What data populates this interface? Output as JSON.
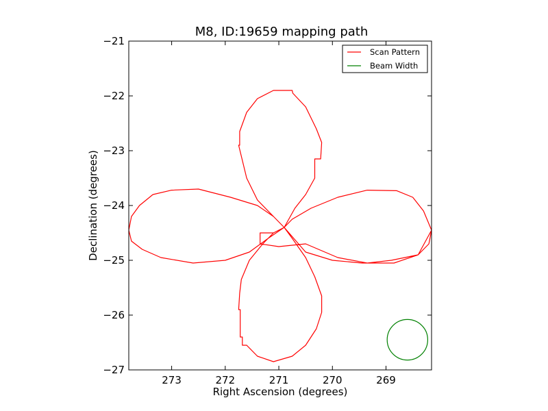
{
  "chart_data": {
    "type": "line",
    "title": "M8, ID:19659 mapping path",
    "xlabel": "Right Ascension (degrees)",
    "ylabel": "Declination (degrees)",
    "xlim": [
      273.8,
      268.15
    ],
    "ylim": [
      -27,
      -21
    ],
    "x_ticks": [
      273,
      272,
      271,
      270,
      269
    ],
    "x_tick_labels": [
      "273",
      "272",
      "271",
      "270",
      "269"
    ],
    "y_ticks": [
      -21,
      -22,
      -23,
      -24,
      -25,
      -26,
      -27
    ],
    "y_tick_labels": [
      "−21",
      "−22",
      "−23",
      "−24",
      "−25",
      "−26",
      "−27"
    ],
    "legend": {
      "placement": "top-right",
      "entries": [
        "Scan Pattern",
        "Beam Width"
      ]
    },
    "colors": {
      "scan": "#ff0000",
      "beam": "#008000"
    },
    "series": [
      {
        "name": "Scan Pattern",
        "points": [
          [
            270.9,
            -24.4
          ],
          [
            271.1,
            -24.2
          ],
          [
            271.4,
            -23.9
          ],
          [
            271.6,
            -23.5
          ],
          [
            271.7,
            -23.1
          ],
          [
            271.75,
            -22.9
          ],
          [
            271.73,
            -22.9
          ],
          [
            271.73,
            -22.65
          ],
          [
            271.6,
            -22.3
          ],
          [
            271.4,
            -22.05
          ],
          [
            271.1,
            -21.9
          ],
          [
            270.75,
            -21.9
          ],
          [
            270.74,
            -21.95
          ],
          [
            270.5,
            -22.2
          ],
          [
            270.3,
            -22.6
          ],
          [
            270.2,
            -22.85
          ],
          [
            270.22,
            -23.15
          ],
          [
            270.33,
            -23.15
          ],
          [
            270.33,
            -23.5
          ],
          [
            270.5,
            -23.8
          ],
          [
            270.7,
            -24.05
          ],
          [
            270.9,
            -24.4
          ],
          [
            270.75,
            -24.25
          ],
          [
            270.4,
            -24.05
          ],
          [
            269.9,
            -23.85
          ],
          [
            269.35,
            -23.72
          ],
          [
            268.8,
            -23.73
          ],
          [
            268.5,
            -23.85
          ],
          [
            268.3,
            -24.1
          ],
          [
            268.15,
            -24.45
          ],
          [
            268.2,
            -24.7
          ],
          [
            268.4,
            -24.9
          ],
          [
            268.85,
            -25.05
          ],
          [
            269.45,
            -25.05
          ],
          [
            270.0,
            -25.0
          ],
          [
            270.5,
            -24.85
          ],
          [
            270.9,
            -24.4
          ],
          [
            270.75,
            -24.6
          ],
          [
            270.5,
            -24.95
          ],
          [
            270.33,
            -25.3
          ],
          [
            270.2,
            -25.65
          ],
          [
            270.2,
            -25.95
          ],
          [
            270.3,
            -26.25
          ],
          [
            270.5,
            -26.55
          ],
          [
            270.75,
            -26.75
          ],
          [
            271.1,
            -26.85
          ],
          [
            271.4,
            -26.75
          ],
          [
            271.6,
            -26.55
          ],
          [
            271.68,
            -26.55
          ],
          [
            271.68,
            -26.4
          ],
          [
            271.72,
            -26.4
          ],
          [
            271.72,
            -25.9
          ],
          [
            271.75,
            -25.9
          ],
          [
            271.73,
            -25.6
          ],
          [
            271.7,
            -25.35
          ],
          [
            271.55,
            -25.0
          ],
          [
            271.3,
            -24.7
          ],
          [
            271.1,
            -24.5
          ],
          [
            270.9,
            -24.4
          ],
          [
            271.1,
            -24.5
          ],
          [
            271.35,
            -24.5
          ],
          [
            271.35,
            -24.7
          ],
          [
            271.0,
            -24.75
          ],
          [
            270.5,
            -24.7
          ],
          [
            269.9,
            -24.95
          ],
          [
            269.35,
            -25.05
          ],
          [
            268.9,
            -25.0
          ],
          [
            268.4,
            -24.9
          ],
          [
            268.15,
            -24.45
          ],
          [
            268.3,
            -24.1
          ],
          [
            268.5,
            -23.85
          ],
          [
            268.8,
            -23.73
          ],
          [
            269.35,
            -23.72
          ],
          [
            269.9,
            -23.85
          ],
          [
            270.4,
            -24.05
          ],
          [
            270.75,
            -24.25
          ],
          [
            270.9,
            -24.4
          ],
          [
            271.1,
            -24.2
          ],
          [
            271.4,
            -24.0
          ],
          [
            271.9,
            -23.85
          ],
          [
            272.5,
            -23.7
          ],
          [
            273.0,
            -23.72
          ],
          [
            273.35,
            -23.8
          ],
          [
            273.6,
            -24.0
          ],
          [
            273.75,
            -24.2
          ],
          [
            273.8,
            -24.45
          ],
          [
            273.75,
            -24.65
          ],
          [
            273.55,
            -24.8
          ],
          [
            273.2,
            -24.95
          ],
          [
            272.6,
            -25.05
          ],
          [
            272.0,
            -25.0
          ],
          [
            271.55,
            -24.85
          ],
          [
            271.2,
            -24.6
          ],
          [
            270.9,
            -24.4
          ]
        ]
      }
    ],
    "beam": {
      "name": "Beam Width",
      "center": [
        268.6,
        -26.45
      ],
      "radius_dec_deg": 0.37
    }
  }
}
